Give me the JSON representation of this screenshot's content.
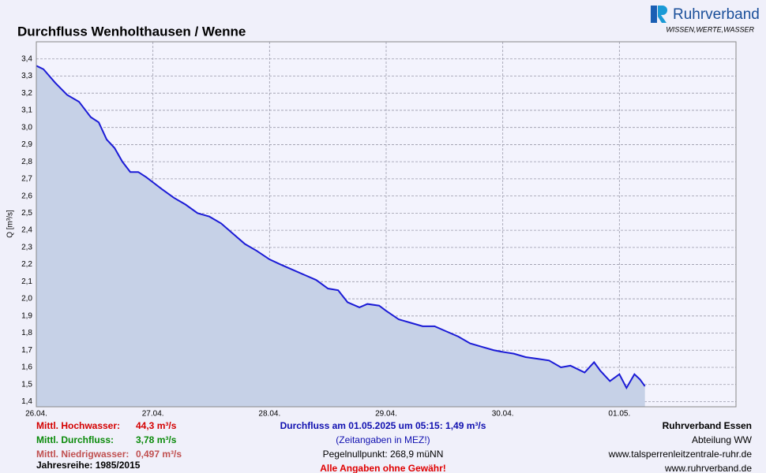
{
  "chart_data": {
    "type": "area",
    "title": "Durchfluss Wenholthausen / Wenne",
    "y_label": "Q [m³/s]",
    "series": [
      {
        "name": "Durchfluss",
        "color": "#1a1ad6",
        "fill": "#c6d1e7",
        "x": [
          0,
          0.061,
          0.163,
          0.264,
          0.366,
          0.467,
          0.535,
          0.603,
          0.671,
          0.738,
          0.806,
          0.874,
          0.942,
          1.0,
          1.077,
          1.179,
          1.28,
          1.382,
          1.484,
          1.585,
          1.687,
          1.789,
          1.89,
          2.0,
          2.095,
          2.196,
          2.298,
          2.4,
          2.501,
          2.588,
          2.669,
          2.771,
          2.839,
          2.94,
          3.0,
          3.108,
          3.211,
          3.313,
          3.415,
          3.516,
          3.618,
          3.72,
          3.821,
          3.923,
          4.0,
          4.095,
          4.196,
          4.298,
          4.397,
          4.499,
          4.58,
          4.702,
          4.783,
          4.837,
          4.919,
          5.0,
          5.061,
          5.129,
          5.176,
          5.219
        ],
        "values": [
          3.36,
          3.34,
          3.26,
          3.19,
          3.15,
          3.06,
          3.03,
          2.93,
          2.88,
          2.8,
          2.74,
          2.74,
          2.71,
          2.68,
          2.64,
          2.59,
          2.55,
          2.5,
          2.48,
          2.44,
          2.38,
          2.32,
          2.28,
          2.23,
          2.2,
          2.17,
          2.14,
          2.11,
          2.06,
          2.05,
          1.98,
          1.95,
          1.97,
          1.96,
          1.93,
          1.88,
          1.86,
          1.84,
          1.84,
          1.81,
          1.78,
          1.74,
          1.72,
          1.7,
          1.69,
          1.68,
          1.66,
          1.65,
          1.64,
          1.6,
          1.61,
          1.57,
          1.63,
          1.58,
          1.52,
          1.56,
          1.48,
          1.56,
          1.53,
          1.49
        ]
      }
    ],
    "xlim": [
      0,
      6
    ],
    "xticks": [
      {
        "value": 0,
        "label": "26.04."
      },
      {
        "value": 1,
        "label": "27.04."
      },
      {
        "value": 2,
        "label": "28.04."
      },
      {
        "value": 3,
        "label": "29.04."
      },
      {
        "value": 4,
        "label": "30.04."
      },
      {
        "value": 5,
        "label": "01.05."
      }
    ],
    "ylim": [
      1.37,
      3.5
    ],
    "yticks": [
      {
        "value": 1.4,
        "label": "1,4"
      },
      {
        "value": 1.5,
        "label": "1,5"
      },
      {
        "value": 1.6,
        "label": "1,6"
      },
      {
        "value": 1.7,
        "label": "1,7"
      },
      {
        "value": 1.8,
        "label": "1,8"
      },
      {
        "value": 1.9,
        "label": "1,9"
      },
      {
        "value": 2.0,
        "label": "2,0"
      },
      {
        "value": 2.1,
        "label": "2,1"
      },
      {
        "value": 2.2,
        "label": "2,2"
      },
      {
        "value": 2.3,
        "label": "2,3"
      },
      {
        "value": 2.4,
        "label": "2,4"
      },
      {
        "value": 2.5,
        "label": "2,5"
      },
      {
        "value": 2.6,
        "label": "2,6"
      },
      {
        "value": 2.7,
        "label": "2,7"
      },
      {
        "value": 2.8,
        "label": "2,8"
      },
      {
        "value": 2.9,
        "label": "2,9"
      },
      {
        "value": 3.0,
        "label": "3,0"
      },
      {
        "value": 3.1,
        "label": "3,1"
      },
      {
        "value": 3.2,
        "label": "3,2"
      },
      {
        "value": 3.3,
        "label": "3,3"
      },
      {
        "value": 3.4,
        "label": "3,4"
      }
    ],
    "grid": true
  },
  "logo": {
    "name": "Ruhrverband",
    "slogan": "WISSEN,WERTE,WASSER"
  },
  "footer": {
    "left": [
      {
        "label": "Mittl. Hochwasser:",
        "value": "44,3 m³/s",
        "color": "#d40000"
      },
      {
        "label": "Mittl. Durchfluss:",
        "value": "3,78 m³/s",
        "color": "#0a8a0a"
      },
      {
        "label": "Mittl. Niedrigwasser:",
        "value": "0,497 m³/s",
        "color": "#c05050"
      }
    ],
    "series_years": "Jahresreihe: 1985/2015",
    "center": [
      "Durchfluss am 01.05.2025 um 05:15: 1,49 m³/s",
      "(Zeitangaben in MEZ!)",
      "Pegelnullpunkt: 268,9 müNN",
      "Alle Angaben ohne Gewähr!"
    ],
    "right": [
      "Ruhrverband Essen",
      "Abteilung WW",
      "www.talsperrenleitzentrale-ruhr.de",
      "www.ruhrverband.de"
    ]
  }
}
